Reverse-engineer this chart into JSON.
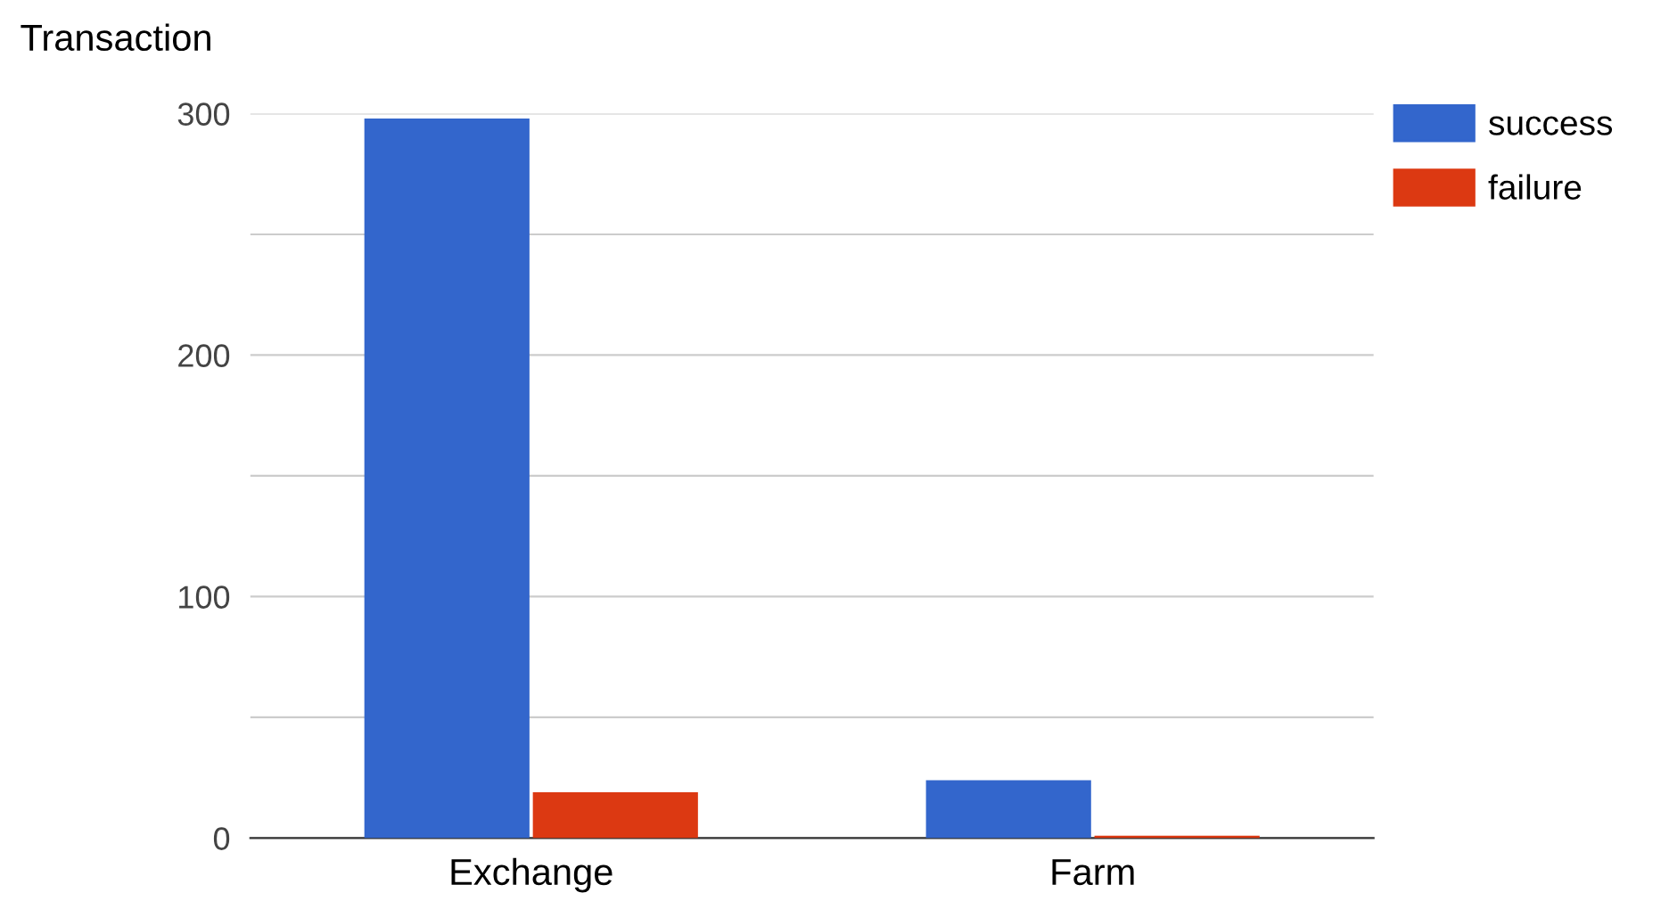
{
  "chart_data": {
    "type": "bar",
    "ylabel": "Transaction",
    "categories": [
      "Exchange",
      "Farm"
    ],
    "series": [
      {
        "name": "success",
        "color": "#3366cc",
        "values": [
          298,
          24
        ]
      },
      {
        "name": "failure",
        "color": "#dc3912",
        "values": [
          19,
          1
        ]
      }
    ],
    "ylim": [
      0,
      300
    ],
    "yticks": [
      0,
      {
        "value": 50,
        "label": null
      },
      100,
      {
        "value": 150,
        "label": null
      },
      200,
      {
        "value": 250,
        "label": null
      },
      300
    ],
    "grid": "y",
    "legend": "top right"
  }
}
